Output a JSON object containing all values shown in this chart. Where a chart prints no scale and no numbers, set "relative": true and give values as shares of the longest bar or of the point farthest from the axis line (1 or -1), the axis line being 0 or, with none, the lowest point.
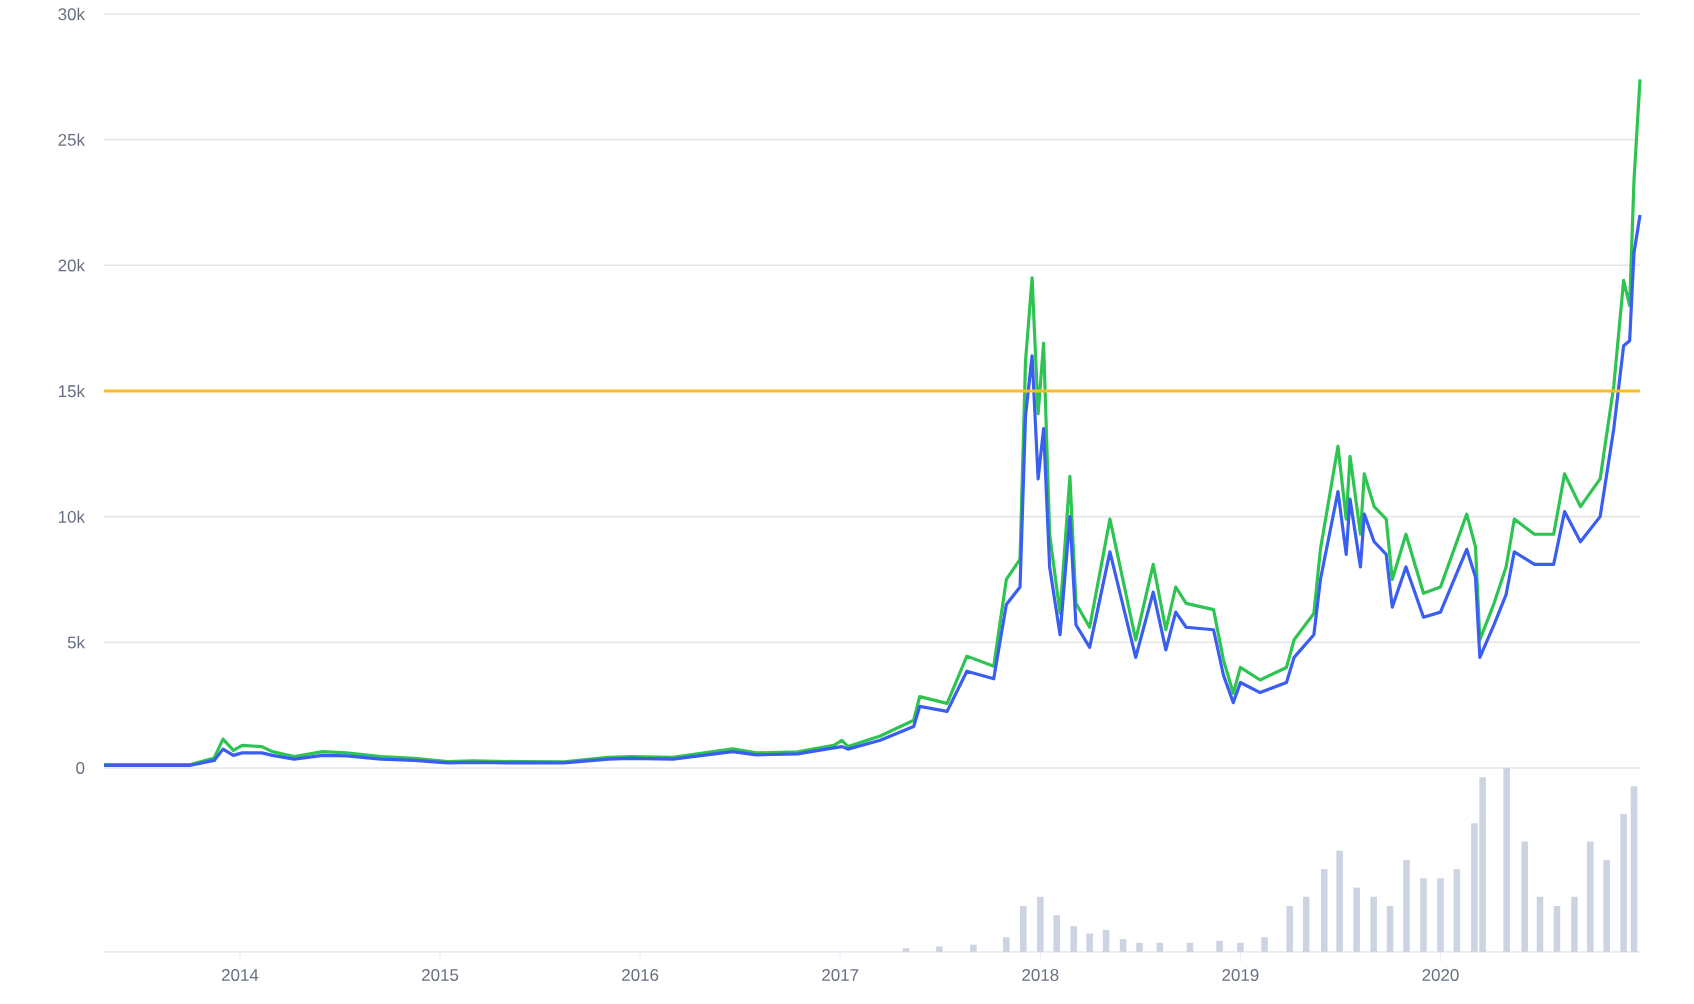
{
  "chart_data": [
    {
      "type": "line",
      "xlim": [
        "2013-04-28",
        "2020-12-31"
      ],
      "ylim": [
        0,
        30000
      ],
      "yticks": [
        0,
        {
          "value": 5000,
          "label": "5k"
        },
        {
          "value": 10000,
          "label": "10k"
        },
        {
          "value": 15000,
          "label": "15k"
        },
        {
          "value": 20000,
          "label": "20k"
        },
        {
          "value": 25000,
          "label": "25k"
        },
        {
          "value": 30000,
          "label": "30k"
        }
      ],
      "grid": "y",
      "tick_labels": "y",
      "x": [
        "2013-04-28",
        "2013-10-01",
        "2013-11-15",
        "2013-12-01",
        "2013-12-20",
        "2014-01-05",
        "2014-02-10",
        "2014-03-01",
        "2014-04-10",
        "2014-06-01",
        "2014-07-15",
        "2014-09-15",
        "2014-11-15",
        "2015-01-15",
        "2015-03-01",
        "2015-06-01",
        "2015-08-15",
        "2015-11-04",
        "2015-12-15",
        "2016-03-01",
        "2016-06-18",
        "2016-08-01",
        "2016-10-15",
        "2016-12-20",
        "2017-01-04",
        "2017-01-15",
        "2017-03-15",
        "2017-05-15",
        "2017-05-26",
        "2017-07-15",
        "2017-08-20",
        "2017-10-08",
        "2017-10-31",
        "2017-11-25",
        "2017-12-05",
        "2017-12-17",
        "2017-12-28",
        "2018-01-07",
        "2018-01-18",
        "2018-02-06",
        "2018-02-24",
        "2018-03-07",
        "2018-04-01",
        "2018-05-08",
        "2018-06-24",
        "2018-07-26",
        "2018-08-18",
        "2018-09-05",
        "2018-09-24",
        "2018-11-13",
        "2018-12-01",
        "2018-12-19",
        "2019-01-01",
        "2019-02-06",
        "2019-03-26",
        "2019-04-09",
        "2019-05-15",
        "2019-05-27",
        "2019-06-28",
        "2019-07-13",
        "2019-07-20",
        "2019-08-08",
        "2019-08-15",
        "2019-09-02",
        "2019-09-24",
        "2019-10-05",
        "2019-10-30",
        "2019-12-01",
        "2020-01-01",
        "2020-02-18",
        "2020-03-05",
        "2020-03-13",
        "2020-04-08",
        "2020-04-30",
        "2020-05-15",
        "2020-06-21",
        "2020-07-26",
        "2020-08-15",
        "2020-09-13",
        "2020-10-19",
        "2020-11-13",
        "2020-12-01",
        "2020-12-12",
        "2020-12-20",
        "2020-12-31"
      ],
      "series": [
        {
          "color": "#2ec451",
          "values": [
            130,
            130,
            400,
            1150,
            700,
            900,
            850,
            650,
            450,
            650,
            600,
            450,
            380,
            250,
            280,
            250,
            240,
            420,
            450,
            420,
            760,
            600,
            640,
            900,
            1100,
            850,
            1270,
            1900,
            2840,
            2570,
            4450,
            4050,
            7500,
            8300,
            16200,
            19500,
            14100,
            16900,
            9300,
            6150,
            11600,
            6550,
            5600,
            9900,
            5100,
            8100,
            5500,
            7200,
            6550,
            6300,
            4300,
            2970,
            4000,
            3500,
            4000,
            5100,
            6150,
            8700,
            12800,
            9900,
            12400,
            9300,
            11700,
            10400,
            9900,
            7500,
            9300,
            6950,
            7200,
            10100,
            8800,
            5100,
            6550,
            8000,
            9900,
            9300,
            9300,
            11700,
            10400,
            11500,
            15200,
            19400,
            18400,
            23400,
            27400
          ]
        },
        {
          "color": "#3a5ef0",
          "values": [
            100,
            100,
            300,
            750,
            500,
            600,
            600,
            500,
            350,
            500,
            480,
            350,
            300,
            200,
            220,
            200,
            200,
            350,
            380,
            350,
            650,
            520,
            560,
            800,
            850,
            750,
            1100,
            1650,
            2450,
            2250,
            3850,
            3550,
            6500,
            7200,
            14000,
            16400,
            11500,
            13500,
            8000,
            5300,
            10000,
            5700,
            4800,
            8600,
            4400,
            7000,
            4700,
            6200,
            5600,
            5500,
            3700,
            2600,
            3400,
            3000,
            3400,
            4400,
            5300,
            7500,
            11000,
            8500,
            10700,
            8000,
            10100,
            9000,
            8500,
            6400,
            8000,
            6000,
            6200,
            8700,
            7600,
            4400,
            5700,
            6900,
            8600,
            8100,
            8100,
            10200,
            9000,
            10000,
            13500,
            16800,
            17000,
            20500,
            22000
          ]
        }
      ],
      "ref_lines": [
        {
          "axis": "y",
          "value": 15000,
          "color": "#fbbc25"
        }
      ]
    },
    {
      "type": "bar",
      "relative": true,
      "color": "#cdd3e0",
      "tick_labels": "x",
      "xlim": [
        "2013-04-28",
        "2020-12-31"
      ],
      "xticks": [
        {
          "value": "2014-01-01",
          "label": "2014"
        },
        {
          "value": "2015-01-01",
          "label": "2015"
        },
        {
          "value": "2016-01-01",
          "label": "2016"
        },
        {
          "value": "2017-01-01",
          "label": "2017"
        },
        {
          "value": "2018-01-01",
          "label": "2018"
        },
        {
          "value": "2019-01-01",
          "label": "2019"
        },
        {
          "value": "2020-01-01",
          "label": "2020"
        }
      ],
      "x": [
        "2017-05-01",
        "2017-07-01",
        "2017-09-01",
        "2017-10-31",
        "2017-12-01",
        "2018-01-01",
        "2018-01-31",
        "2018-03-03",
        "2018-04-01",
        "2018-05-01",
        "2018-06-01",
        "2018-07-01",
        "2018-08-07",
        "2018-10-01",
        "2018-11-24",
        "2019-01-01",
        "2019-02-14",
        "2019-04-01",
        "2019-05-01",
        "2019-06-03",
        "2019-07-01",
        "2019-08-01",
        "2019-09-01",
        "2019-10-01",
        "2019-10-31",
        "2019-12-01",
        "2020-01-01",
        "2020-01-31",
        "2020-03-03",
        "2020-03-18",
        "2020-05-01",
        "2020-06-03",
        "2020-07-01",
        "2020-08-01",
        "2020-09-02",
        "2020-10-01",
        "2020-10-31",
        "2020-12-01",
        "2020-12-20"
      ],
      "values": [
        0.02,
        0.03,
        0.04,
        0.08,
        0.25,
        0.3,
        0.2,
        0.14,
        0.1,
        0.12,
        0.07,
        0.05,
        0.05,
        0.05,
        0.06,
        0.05,
        0.08,
        0.25,
        0.3,
        0.45,
        0.55,
        0.35,
        0.3,
        0.25,
        0.5,
        0.4,
        0.4,
        0.45,
        0.7,
        0.95,
        1.0,
        0.6,
        0.3,
        0.25,
        0.3,
        0.6,
        0.5,
        0.75,
        0.9
      ]
    }
  ]
}
